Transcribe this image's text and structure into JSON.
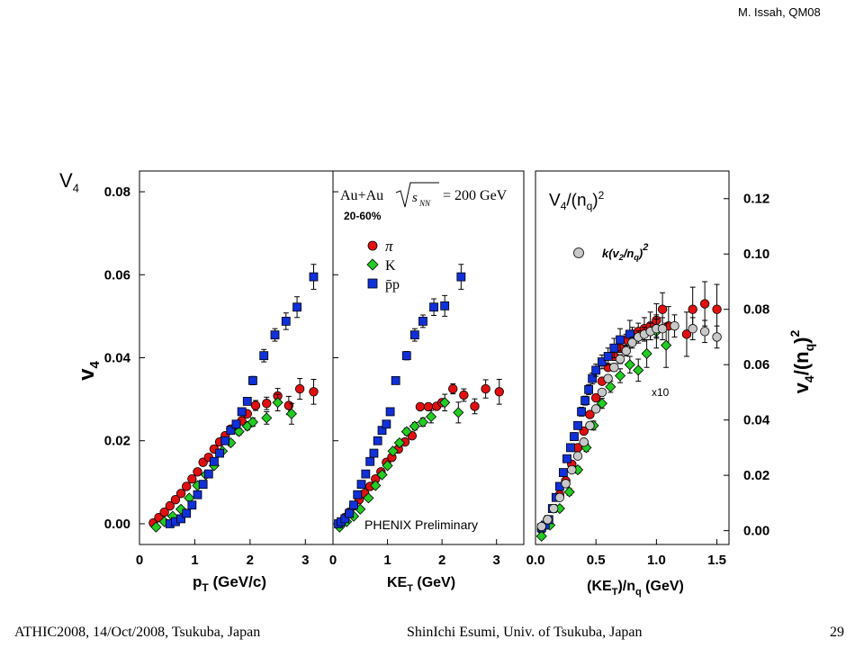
{
  "header": {
    "author": "M. Issah, QM08"
  },
  "slide_labels": {
    "v4_left_base": "V",
    "v4_left_sub": "4",
    "v4_right_base": "V",
    "v4_right_sub": "4",
    "v4_right_mid": "/(n",
    "v4_right_sub2": "q",
    "v4_right_end": ")",
    "v4_right_sup": "2"
  },
  "footer": {
    "left": "ATHIC2008, 14/Oct/2008, Tsukuba, Japan",
    "center": "ShinIchi Esumi, Univ. of Tsukuba, Japan",
    "page": "29"
  },
  "panel_text": {
    "system": "Au+Au",
    "energy": "= 200 GeV",
    "centrality": "20-60%",
    "legend_pi": "π",
    "legend_k": "K",
    "legend_p": "p̄p",
    "phenix": "PHENIX Preliminary",
    "scaled": "k(v",
    "scaled_sub": "2",
    "scaled_mid": "/n",
    "scaled_sub2": "q",
    "scaled_end": ")",
    "scaled_sup": "2",
    "x10": "x10",
    "ylabel_left": "v",
    "ylabel_left_sub": "4",
    "xlabel_1": "p",
    "xlabel_1_sub": "T",
    "xlabel_1_end": " (GeV/c)",
    "xlabel_2": "KE",
    "xlabel_2_sub": "T",
    "xlabel_2_end": " (GeV)",
    "xlabel_3": "(KE",
    "xlabel_3_sub": "T",
    "xlabel_3_end": ")/n",
    "xlabel_3_sub2": "q",
    "xlabel_3_end2": " (GeV)",
    "ylabel_right": "v",
    "ylabel_right_sub": "4",
    "ylabel_right_mid": "/(n",
    "ylabel_right_sub2": "q",
    "ylabel_right_end": ")",
    "ylabel_right_sup": "2"
  },
  "colors": {
    "pion": "#e01010",
    "kaon": "#22cc22",
    "proton": "#1030d8",
    "scaled": "#c8c8c8"
  },
  "chart_data": [
    {
      "type": "scatter",
      "xlabel": "pT (GeV/c)",
      "ylabel": "v4",
      "xlim": [
        0,
        3.5
      ],
      "ylim": [
        -0.005,
        0.085
      ],
      "xticks": [
        "0",
        "1",
        "2",
        "3"
      ],
      "yticks": [
        "0.00",
        "0.02",
        "0.04",
        "0.06",
        "0.08"
      ],
      "series": [
        {
          "name": "π",
          "marker": "circle",
          "x": [
            0.25,
            0.35,
            0.45,
            0.55,
            0.65,
            0.75,
            0.85,
            0.95,
            1.05,
            1.15,
            1.25,
            1.35,
            1.45,
            1.55,
            1.65,
            1.75,
            1.85,
            1.95,
            2.1,
            2.3,
            2.5,
            2.7,
            2.9,
            3.15
          ],
          "y": [
            0.0002,
            0.0015,
            0.0028,
            0.0043,
            0.0058,
            0.0073,
            0.009,
            0.0108,
            0.0125,
            0.0148,
            0.016,
            0.018,
            0.0197,
            0.0212,
            0.0228,
            0.0238,
            0.0248,
            0.0265,
            0.0285,
            0.029,
            0.0308,
            0.0285,
            0.0325,
            0.0318
          ],
          "err": [
            0.0003,
            0.0003,
            0.0003,
            0.0003,
            0.0003,
            0.0003,
            0.0003,
            0.0003,
            0.0003,
            0.0003,
            0.0003,
            0.0003,
            0.0004,
            0.0004,
            0.0004,
            0.0005,
            0.0005,
            0.0006,
            0.0012,
            0.0015,
            0.0018,
            0.0022,
            0.0025,
            0.003
          ]
        },
        {
          "name": "K",
          "marker": "diamond",
          "x": [
            0.3,
            0.45,
            0.6,
            0.75,
            0.9,
            1.05,
            1.2,
            1.35,
            1.5,
            1.65,
            1.8,
            1.95,
            2.05,
            2.3,
            2.5,
            2.75
          ],
          "y": [
            -0.0008,
            0.0005,
            0.0018,
            0.0035,
            0.0062,
            0.0092,
            0.0118,
            0.014,
            0.0175,
            0.0195,
            0.0222,
            0.0235,
            0.0245,
            0.0255,
            0.0292,
            0.0265
          ],
          "err": [
            0.0004,
            0.0004,
            0.0004,
            0.0004,
            0.0004,
            0.0004,
            0.0005,
            0.0005,
            0.0006,
            0.0007,
            0.0008,
            0.0009,
            0.001,
            0.0015,
            0.002,
            0.0025
          ]
        },
        {
          "name": "p̄p",
          "marker": "square",
          "x": [
            0.55,
            0.65,
            0.75,
            0.85,
            0.95,
            1.05,
            1.15,
            1.25,
            1.35,
            1.45,
            1.55,
            1.65,
            1.75,
            1.85,
            1.95,
            2.05,
            2.25,
            2.45,
            2.65,
            2.85,
            3.15
          ],
          "y": [
            0.0,
            0.0005,
            0.0012,
            0.0025,
            0.0045,
            0.007,
            0.0095,
            0.012,
            0.015,
            0.017,
            0.02,
            0.0225,
            0.024,
            0.027,
            0.0295,
            0.0345,
            0.0405,
            0.0455,
            0.0488,
            0.0522,
            0.0595
          ],
          "err": [
            0.0003,
            0.0003,
            0.0003,
            0.0003,
            0.0003,
            0.0003,
            0.0003,
            0.0004,
            0.0004,
            0.0004,
            0.0005,
            0.0005,
            0.0006,
            0.0006,
            0.0008,
            0.001,
            0.0015,
            0.0015,
            0.002,
            0.0025,
            0.003
          ]
        }
      ]
    },
    {
      "type": "scatter",
      "xlabel": "KET (GeV)",
      "ylabel": "v4",
      "xlim": [
        0,
        3.5
      ],
      "ylim": [
        -0.005,
        0.085
      ],
      "xticks": [
        "0",
        "1",
        "2",
        "3"
      ],
      "series": [
        {
          "name": "π",
          "marker": "circle",
          "x": [
            0.15,
            0.22,
            0.3,
            0.38,
            0.48,
            0.58,
            0.68,
            0.78,
            0.88,
            0.98,
            1.08,
            1.2,
            1.32,
            1.45,
            1.6,
            1.75,
            1.9,
            2.0,
            2.2,
            2.4,
            2.6,
            2.8,
            3.05
          ],
          "y": [
            0.0002,
            0.0015,
            0.0028,
            0.0043,
            0.0058,
            0.0073,
            0.009,
            0.0108,
            0.0125,
            0.0148,
            0.016,
            0.018,
            0.0197,
            0.0212,
            0.0282,
            0.0282,
            0.0283,
            0.0292,
            0.0325,
            0.031,
            0.0283,
            0.0325,
            0.0318
          ],
          "err": [
            0.0003,
            0.0003,
            0.0003,
            0.0003,
            0.0003,
            0.0003,
            0.0003,
            0.0003,
            0.0003,
            0.0003,
            0.0003,
            0.0003,
            0.0004,
            0.0004,
            0.0004,
            0.0005,
            0.0005,
            0.0006,
            0.0012,
            0.0015,
            0.0018,
            0.0022,
            0.003
          ]
        },
        {
          "name": "K",
          "marker": "diamond",
          "x": [
            0.12,
            0.25,
            0.38,
            0.5,
            0.65,
            0.78,
            0.9,
            1.0,
            1.1,
            1.22,
            1.35,
            1.5,
            1.65,
            1.8,
            2.05,
            2.3
          ],
          "y": [
            -0.0008,
            0.0005,
            0.0018,
            0.0035,
            0.0062,
            0.0092,
            0.0118,
            0.014,
            0.0175,
            0.0195,
            0.0222,
            0.0235,
            0.0245,
            0.0258,
            0.0292,
            0.0268
          ],
          "err": [
            0.0004,
            0.0004,
            0.0004,
            0.0004,
            0.0004,
            0.0004,
            0.0005,
            0.0005,
            0.0006,
            0.0007,
            0.0008,
            0.0009,
            0.001,
            0.0015,
            0.002,
            0.0025
          ]
        },
        {
          "name": "p̄p",
          "marker": "square",
          "x": [
            0.1,
            0.15,
            0.22,
            0.3,
            0.38,
            0.45,
            0.52,
            0.6,
            0.68,
            0.75,
            0.82,
            0.9,
            0.98,
            1.05,
            1.15,
            1.35,
            1.5,
            1.65,
            1.85,
            2.05,
            2.35
          ],
          "y": [
            0.0,
            0.0005,
            0.0012,
            0.0025,
            0.0045,
            0.007,
            0.0095,
            0.012,
            0.015,
            0.017,
            0.02,
            0.0225,
            0.024,
            0.027,
            0.0345,
            0.0405,
            0.0455,
            0.0488,
            0.0522,
            0.0525,
            0.0595
          ],
          "err": [
            0.0003,
            0.0003,
            0.0003,
            0.0003,
            0.0003,
            0.0003,
            0.0003,
            0.0004,
            0.0004,
            0.0004,
            0.0005,
            0.0005,
            0.0006,
            0.0006,
            0.0008,
            0.001,
            0.0015,
            0.0015,
            0.002,
            0.0025,
            0.003
          ]
        }
      ]
    },
    {
      "type": "scatter",
      "xlabel": "(KET)/nq (GeV)",
      "ylabel": "v4/(nq)2",
      "xlim": [
        0,
        1.6
      ],
      "ylim": [
        -0.005,
        0.13
      ],
      "xticks": [
        "0.0",
        "0.5",
        "1.0",
        "1.5"
      ],
      "yticks": [
        "0.00",
        "0.02",
        "0.04",
        "0.06",
        "0.08",
        "0.10",
        "0.12"
      ],
      "series": [
        {
          "name": "π",
          "marker": "circle",
          "x": [
            0.05,
            0.1,
            0.15,
            0.2,
            0.25,
            0.3,
            0.35,
            0.4,
            0.45,
            0.5,
            0.55,
            0.6,
            0.65,
            0.7,
            0.75,
            0.8,
            0.85,
            0.9,
            0.95,
            1.0,
            1.05,
            1.1,
            1.25,
            1.3,
            1.4,
            1.5
          ],
          "y": [
            0.0005,
            0.004,
            0.008,
            0.013,
            0.018,
            0.024,
            0.03,
            0.036,
            0.042,
            0.048,
            0.054,
            0.059,
            0.063,
            0.066,
            0.069,
            0.071,
            0.072,
            0.073,
            0.074,
            0.076,
            0.08,
            0.074,
            0.071,
            0.08,
            0.082,
            0.08
          ],
          "err": [
            0.0005,
            0.0005,
            0.0005,
            0.0005,
            0.0005,
            0.0006,
            0.0006,
            0.0007,
            0.0008,
            0.0009,
            0.001,
            0.0012,
            0.0014,
            0.0016,
            0.002,
            0.0025,
            0.003,
            0.004,
            0.005,
            0.006,
            0.006,
            0.007,
            0.008,
            0.008,
            0.008,
            0.009
          ]
        },
        {
          "name": "K",
          "marker": "diamond",
          "x": [
            0.05,
            0.12,
            0.2,
            0.28,
            0.35,
            0.42,
            0.48,
            0.55,
            0.62,
            0.7,
            0.78,
            0.85,
            0.92,
            1.0,
            1.08
          ],
          "y": [
            -0.002,
            0.002,
            0.008,
            0.014,
            0.022,
            0.03,
            0.038,
            0.046,
            0.052,
            0.056,
            0.06,
            0.058,
            0.064,
            0.072,
            0.067
          ],
          "err": [
            0.001,
            0.001,
            0.001,
            0.0012,
            0.0012,
            0.0014,
            0.0016,
            0.0018,
            0.002,
            0.0025,
            0.003,
            0.004,
            0.005,
            0.006,
            0.008
          ]
        },
        {
          "name": "p̄p",
          "marker": "square",
          "x": [
            0.05,
            0.08,
            0.11,
            0.14,
            0.17,
            0.2,
            0.23,
            0.26,
            0.29,
            0.32,
            0.35,
            0.38,
            0.41,
            0.44,
            0.47,
            0.5,
            0.55,
            0.6,
            0.65,
            0.7,
            0.78
          ],
          "y": [
            0.001,
            0.002,
            0.004,
            0.008,
            0.012,
            0.016,
            0.021,
            0.026,
            0.03,
            0.034,
            0.038,
            0.043,
            0.047,
            0.051,
            0.055,
            0.058,
            0.061,
            0.063,
            0.066,
            0.069,
            0.071
          ],
          "err": [
            0.0008,
            0.0008,
            0.0008,
            0.0008,
            0.001,
            0.001,
            0.001,
            0.0012,
            0.0012,
            0.0014,
            0.0014,
            0.0016,
            0.0016,
            0.0018,
            0.002,
            0.0022,
            0.0025,
            0.003,
            0.0035,
            0.004,
            0.005
          ]
        },
        {
          "name": "k(v2/nq)2",
          "marker": "circle",
          "x": [
            0.05,
            0.1,
            0.15,
            0.2,
            0.25,
            0.3,
            0.35,
            0.4,
            0.45,
            0.5,
            0.55,
            0.6,
            0.65,
            0.7,
            0.75,
            0.8,
            0.85,
            0.9,
            0.95,
            1.0,
            1.05,
            1.15,
            1.3,
            1.4,
            1.5
          ],
          "y": [
            0.0015,
            0.004,
            0.008,
            0.012,
            0.017,
            0.022,
            0.027,
            0.032,
            0.038,
            0.044,
            0.05,
            0.055,
            0.059,
            0.062,
            0.065,
            0.068,
            0.07,
            0.071,
            0.072,
            0.073,
            0.073,
            0.074,
            0.073,
            0.072,
            0.07
          ],
          "err": [
            0.0005,
            0.0005,
            0.0005,
            0.0005,
            0.0005,
            0.0006,
            0.0006,
            0.0007,
            0.0008,
            0.0009,
            0.001,
            0.0012,
            0.0014,
            0.0016,
            0.0018,
            0.002,
            0.0022,
            0.0025,
            0.003,
            0.0035,
            0.004,
            0.004,
            0.004,
            0.004,
            0.004
          ]
        }
      ]
    }
  ]
}
